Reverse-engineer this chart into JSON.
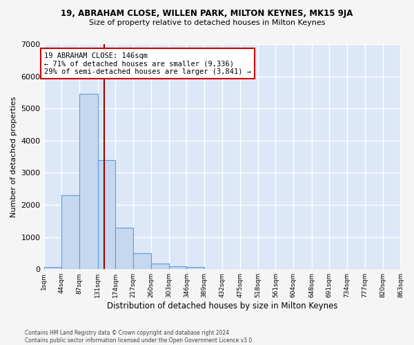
{
  "title1": "19, ABRAHAM CLOSE, WILLEN PARK, MILTON KEYNES, MK15 9JA",
  "title2": "Size of property relative to detached houses in Milton Keynes",
  "xlabel": "Distribution of detached houses by size in Milton Keynes",
  "ylabel": "Number of detached properties",
  "footer1": "Contains HM Land Registry data © Crown copyright and database right 2024.",
  "footer2": "Contains public sector information licensed under the Open Government Licence v3.0.",
  "bin_edges": [
    1,
    44,
    87,
    131,
    174,
    217,
    260,
    303,
    346,
    389,
    432,
    475,
    518,
    561,
    604,
    648,
    691,
    734,
    777,
    820,
    863
  ],
  "bar_heights": [
    75,
    2300,
    5450,
    3400,
    1300,
    500,
    175,
    100,
    60,
    5,
    0,
    0,
    0,
    0,
    0,
    0,
    0,
    0,
    0,
    0
  ],
  "bar_color": "#c5d8f0",
  "bar_edge_color": "#5b9bd5",
  "property_size": 146,
  "vline_color": "#990000",
  "annotation_text": "19 ABRAHAM CLOSE: 146sqm\n← 71% of detached houses are smaller (9,336)\n29% of semi-detached houses are larger (3,841) →",
  "annotation_box_color": "#ffffff",
  "annotation_box_edge": "#cc0000",
  "ylim": [
    0,
    7000
  ],
  "background_color": "#dce8f8",
  "grid_color": "#ffffff",
  "fig_bg_color": "#f5f5f5",
  "tick_labels": [
    "1sqm",
    "44sqm",
    "87sqm",
    "131sqm",
    "174sqm",
    "217sqm",
    "260sqm",
    "303sqm",
    "346sqm",
    "389sqm",
    "432sqm",
    "475sqm",
    "518sqm",
    "561sqm",
    "604sqm",
    "648sqm",
    "691sqm",
    "734sqm",
    "777sqm",
    "820sqm",
    "863sqm"
  ]
}
